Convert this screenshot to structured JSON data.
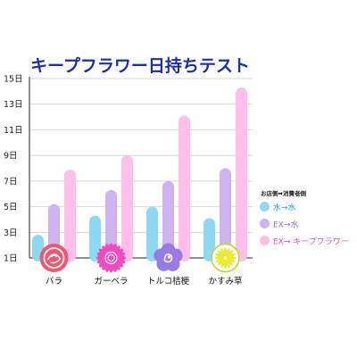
{
  "chart_data": {
    "type": "bar",
    "title": "キープフラワー日持ちテスト",
    "xlabel": "",
    "ylabel": "",
    "ylim": [
      1,
      15
    ],
    "yticks": [
      "1日",
      "3日",
      "5日",
      "7日",
      "9日",
      "11日",
      "13日",
      "15日"
    ],
    "categories": [
      "バラ",
      "ガーベラ",
      "トルコ桔梗",
      "かすみ草"
    ],
    "legend_heading": "お店側➡消費者側",
    "legend_position": "right",
    "grid": true,
    "series": [
      {
        "name": "水→水",
        "color": "#8fd8f2",
        "label_color": "#1aa8d8",
        "values": [
          2.8,
          4.3,
          5.0,
          4.1
        ]
      },
      {
        "name": "EX→水",
        "color": "#cdb3f0",
        "label_color": "#9a6fd8",
        "values": [
          5.2,
          6.3,
          7.0,
          8.0
        ]
      },
      {
        "name": "EX→ キープフラワー",
        "color": "#ffbfe8",
        "label_color": "#ff44b4",
        "values": [
          7.9,
          9.0,
          12.1,
          14.3
        ]
      }
    ],
    "icons": [
      "rose-icon",
      "gerbera-icon",
      "lisianthus-icon",
      "babys-breath-icon"
    ]
  }
}
